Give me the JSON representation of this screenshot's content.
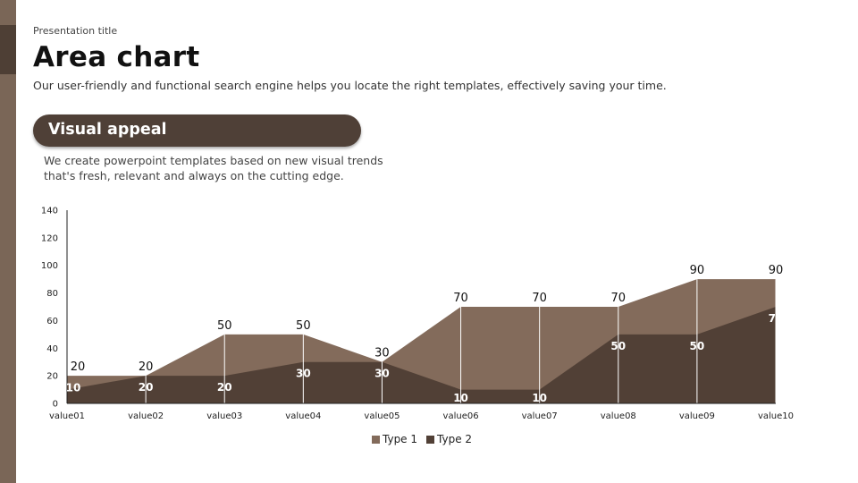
{
  "slide": {
    "presentation_title": "Presentation title",
    "title": "Area chart",
    "subtitle": "Our user-friendly and functional search engine helps you locate the right templates, effectively saving your time.",
    "pill_label": "Visual appeal",
    "description": "We create powerpoint templates based on new visual trends that's fresh, relevant and always on the cutting edge."
  },
  "colors": {
    "type1": "#836b5b",
    "type2": "#514036",
    "side_bar": "#7a6657"
  },
  "chart_data": {
    "type": "area",
    "categories": [
      "value01",
      "value02",
      "value03",
      "value04",
      "value05",
      "value06",
      "value07",
      "value08",
      "value09",
      "value10"
    ],
    "series": [
      {
        "name": "Type 1",
        "values": [
          20,
          20,
          50,
          50,
          30,
          70,
          70,
          70,
          90,
          90
        ]
      },
      {
        "name": "Type 2",
        "values": [
          10,
          20,
          20,
          30,
          30,
          10,
          10,
          50,
          50,
          70
        ]
      }
    ],
    "ylim": [
      0,
      140
    ],
    "yticks": [
      0,
      20,
      40,
      60,
      80,
      100,
      120,
      140
    ],
    "legend_position": "bottom",
    "grid": false
  }
}
